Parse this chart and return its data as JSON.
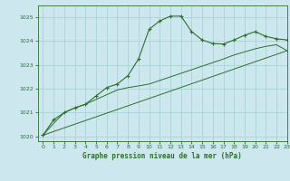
{
  "title": "Graphe pression niveau de la mer (hPa)",
  "background_color": "#cce8ee",
  "grid_color": "#aad4d8",
  "line_color": "#2d6e2d",
  "xlim": [
    -0.5,
    23
  ],
  "ylim": [
    1019.8,
    1025.5
  ],
  "yticks": [
    1020,
    1021,
    1022,
    1023,
    1024,
    1025
  ],
  "xticks": [
    0,
    1,
    2,
    3,
    4,
    5,
    6,
    7,
    8,
    9,
    10,
    11,
    12,
    13,
    14,
    15,
    16,
    17,
    18,
    19,
    20,
    21,
    22,
    23
  ],
  "series1_x": [
    0,
    1,
    2,
    3,
    4,
    5,
    6,
    7,
    8,
    9,
    10,
    11,
    12,
    13,
    14,
    15,
    16,
    17,
    18,
    19,
    20,
    21,
    22,
    23
  ],
  "series1_y": [
    1020.05,
    1020.7,
    1021.0,
    1021.2,
    1021.35,
    1021.7,
    1022.05,
    1022.2,
    1022.55,
    1023.25,
    1024.5,
    1024.85,
    1025.05,
    1025.05,
    1024.4,
    1024.05,
    1023.9,
    1023.88,
    1024.05,
    1024.25,
    1024.4,
    1024.2,
    1024.1,
    1024.05
  ],
  "series2_x": [
    0,
    1,
    2,
    3,
    4,
    5,
    6,
    7,
    8,
    9,
    10,
    11,
    12,
    13,
    14,
    15,
    16,
    17,
    18,
    19,
    20,
    21,
    22,
    23
  ],
  "series2_y": [
    1020.05,
    1020.55,
    1021.0,
    1021.2,
    1021.35,
    1021.55,
    1021.75,
    1021.95,
    1022.05,
    1022.12,
    1022.2,
    1022.35,
    1022.5,
    1022.65,
    1022.8,
    1022.95,
    1023.1,
    1023.25,
    1023.42,
    1023.55,
    1023.68,
    1023.78,
    1023.85,
    1023.6
  ],
  "series3_x": [
    0,
    23
  ],
  "series3_y": [
    1020.05,
    1023.6
  ]
}
